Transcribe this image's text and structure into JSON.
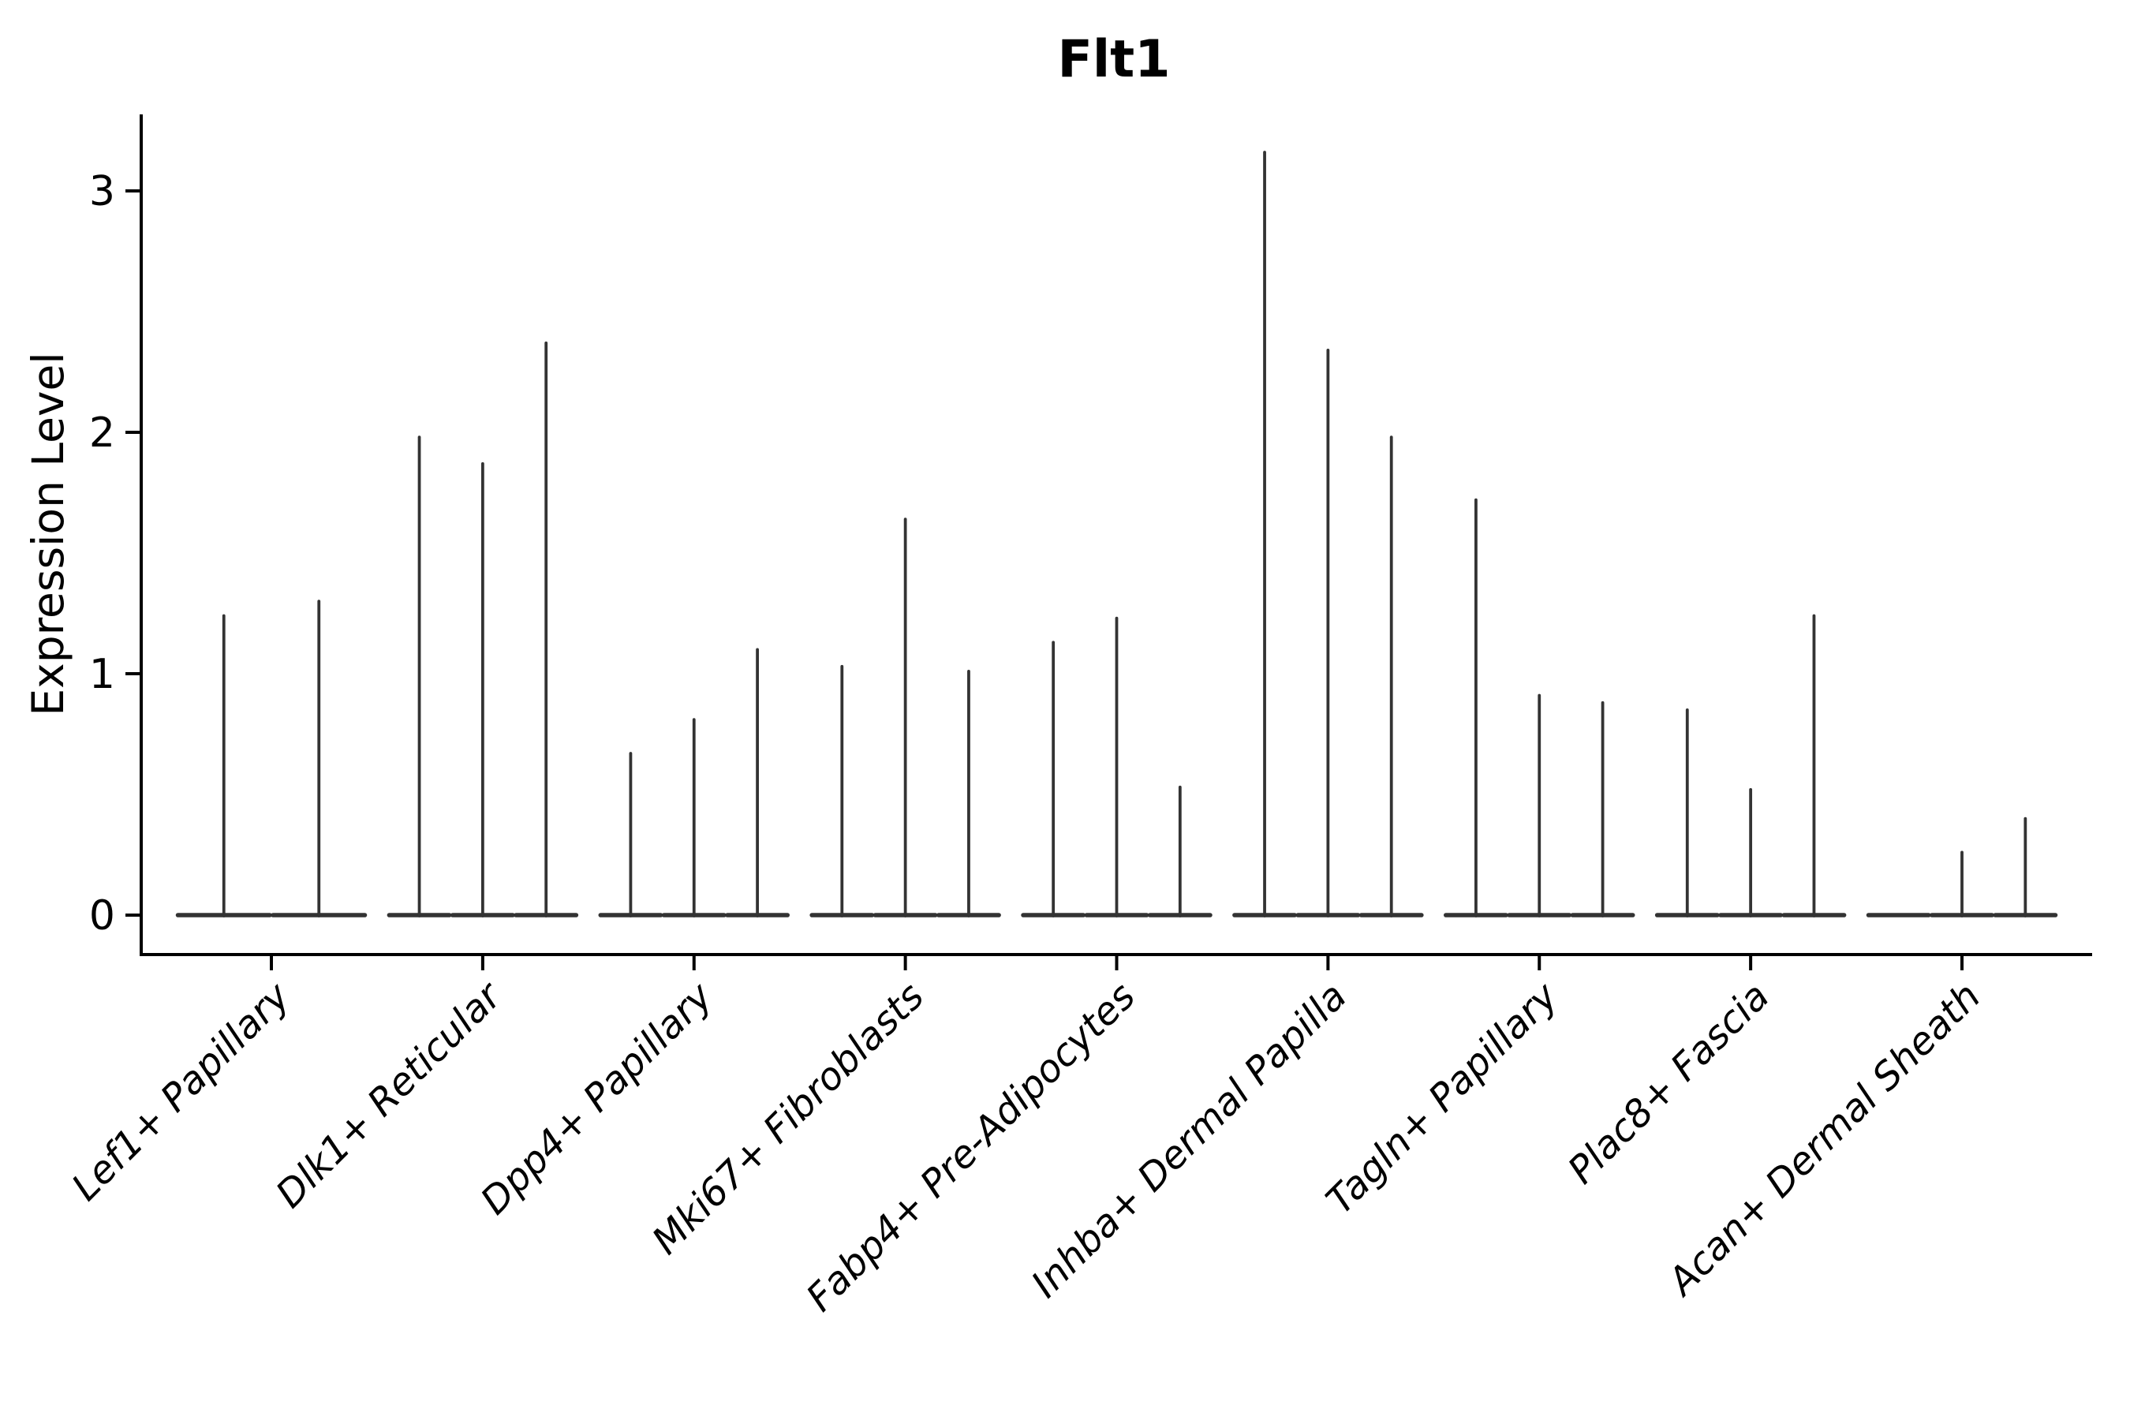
{
  "chart_data": {
    "type": "violin",
    "title": "Flt1",
    "ylabel": "Expression Level",
    "xlabel": "",
    "yticks": [
      0,
      1,
      2,
      3
    ],
    "ytick_labels": [
      "0",
      "1",
      "2",
      "3"
    ],
    "ylim": [
      -0.17,
      3.32
    ],
    "grid": false,
    "legend_position": "none",
    "violin_style": "collapsed-at-zero flat base with thin spike rising to max value",
    "categories": [
      "Lef1+ Papillary",
      "Dlk1+ Reticular",
      "Dpp4+ Papillary",
      "Mki67+ Fibroblasts",
      "Fabp4+ Pre-Adipocytes",
      "Inhba+ Dermal Papilla",
      "Tagln+ Papillary",
      "Plac8+ Fascia",
      "Acan+ Dermal Sheath"
    ],
    "groups": [
      {
        "category": "Lef1+ Papillary",
        "violin_maxima": [
          1.24,
          1.3
        ]
      },
      {
        "category": "Dlk1+ Reticular",
        "violin_maxima": [
          1.98,
          1.87,
          2.37
        ]
      },
      {
        "category": "Dpp4+ Papillary",
        "violin_maxima": [
          0.67,
          0.81,
          1.1
        ]
      },
      {
        "category": "Mki67+ Fibroblasts",
        "violin_maxima": [
          1.03,
          1.64,
          1.01
        ]
      },
      {
        "category": "Fabp4+ Pre-Adipocytes",
        "violin_maxima": [
          1.13,
          1.23,
          0.53
        ]
      },
      {
        "category": "Inhba+ Dermal Papilla",
        "violin_maxima": [
          3.16,
          2.34,
          1.98
        ]
      },
      {
        "category": "Tagln+ Papillary",
        "violin_maxima": [
          1.72,
          0.91,
          0.88
        ]
      },
      {
        "category": "Plac8+ Fascia",
        "violin_maxima": [
          0.85,
          0.52,
          1.24
        ]
      },
      {
        "category": "Acan+ Dermal Sheath",
        "violin_maxima": [
          0.0,
          0.26,
          0.4
        ]
      }
    ],
    "colors": {
      "violin": "#333333",
      "axis": "#000000",
      "text": "#000000",
      "background": "#ffffff"
    }
  }
}
